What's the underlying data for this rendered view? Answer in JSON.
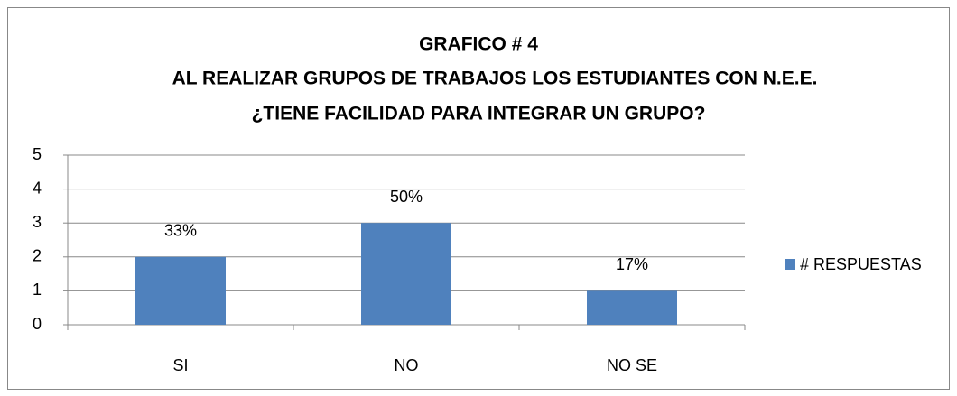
{
  "chart_data": {
    "type": "bar",
    "title": [
      "GRAFICO # 4",
      "AL REALIZAR GRUPOS DE TRABAJOS LOS ESTUDIANTES CON N.E.E.",
      "¿TIENE FACILIDAD PARA INTEGRAR UN GRUPO?"
    ],
    "categories": [
      "SI",
      "NO",
      "NO SE"
    ],
    "series": [
      {
        "name": "# RESPUESTAS",
        "color": "#4f81bd",
        "values": [
          2,
          3,
          1
        ]
      }
    ],
    "annotations": [
      "33%",
      "50%",
      "17%"
    ],
    "ylim": [
      0,
      5
    ],
    "yticks": [
      0,
      1,
      2,
      3,
      4,
      5
    ],
    "grid": true,
    "legend": "right"
  }
}
